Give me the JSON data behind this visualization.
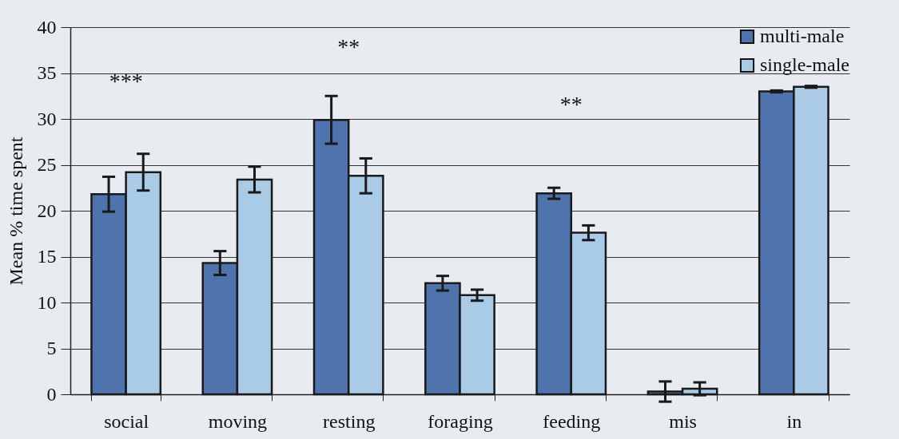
{
  "chart_data": {
    "type": "bar",
    "ylabel": "Mean % time spent",
    "categories": [
      "social",
      "moving",
      "resting",
      "foraging",
      "feeding",
      "mis",
      "in"
    ],
    "series": [
      {
        "name": "multi-male",
        "color": "#4f74ad",
        "values": [
          21.8,
          14.3,
          29.9,
          12.1,
          21.9,
          0.3,
          33.0
        ],
        "errors": [
          1.9,
          1.3,
          2.6,
          0.8,
          0.6,
          1.1,
          0.1
        ]
      },
      {
        "name": "single-male",
        "color": "#a9cbe6",
        "values": [
          24.2,
          23.4,
          23.8,
          10.8,
          17.6,
          0.6,
          33.5
        ],
        "errors": [
          2.0,
          1.4,
          1.9,
          0.6,
          0.8,
          0.7,
          0.1
        ]
      }
    ],
    "ylim": [
      0,
      40
    ],
    "yticks": [
      0,
      5,
      10,
      15,
      20,
      25,
      30,
      35,
      40
    ],
    "grid": "y",
    "legend": "top right",
    "annotations": [
      "***",
      "**",
      "**"
    ]
  }
}
